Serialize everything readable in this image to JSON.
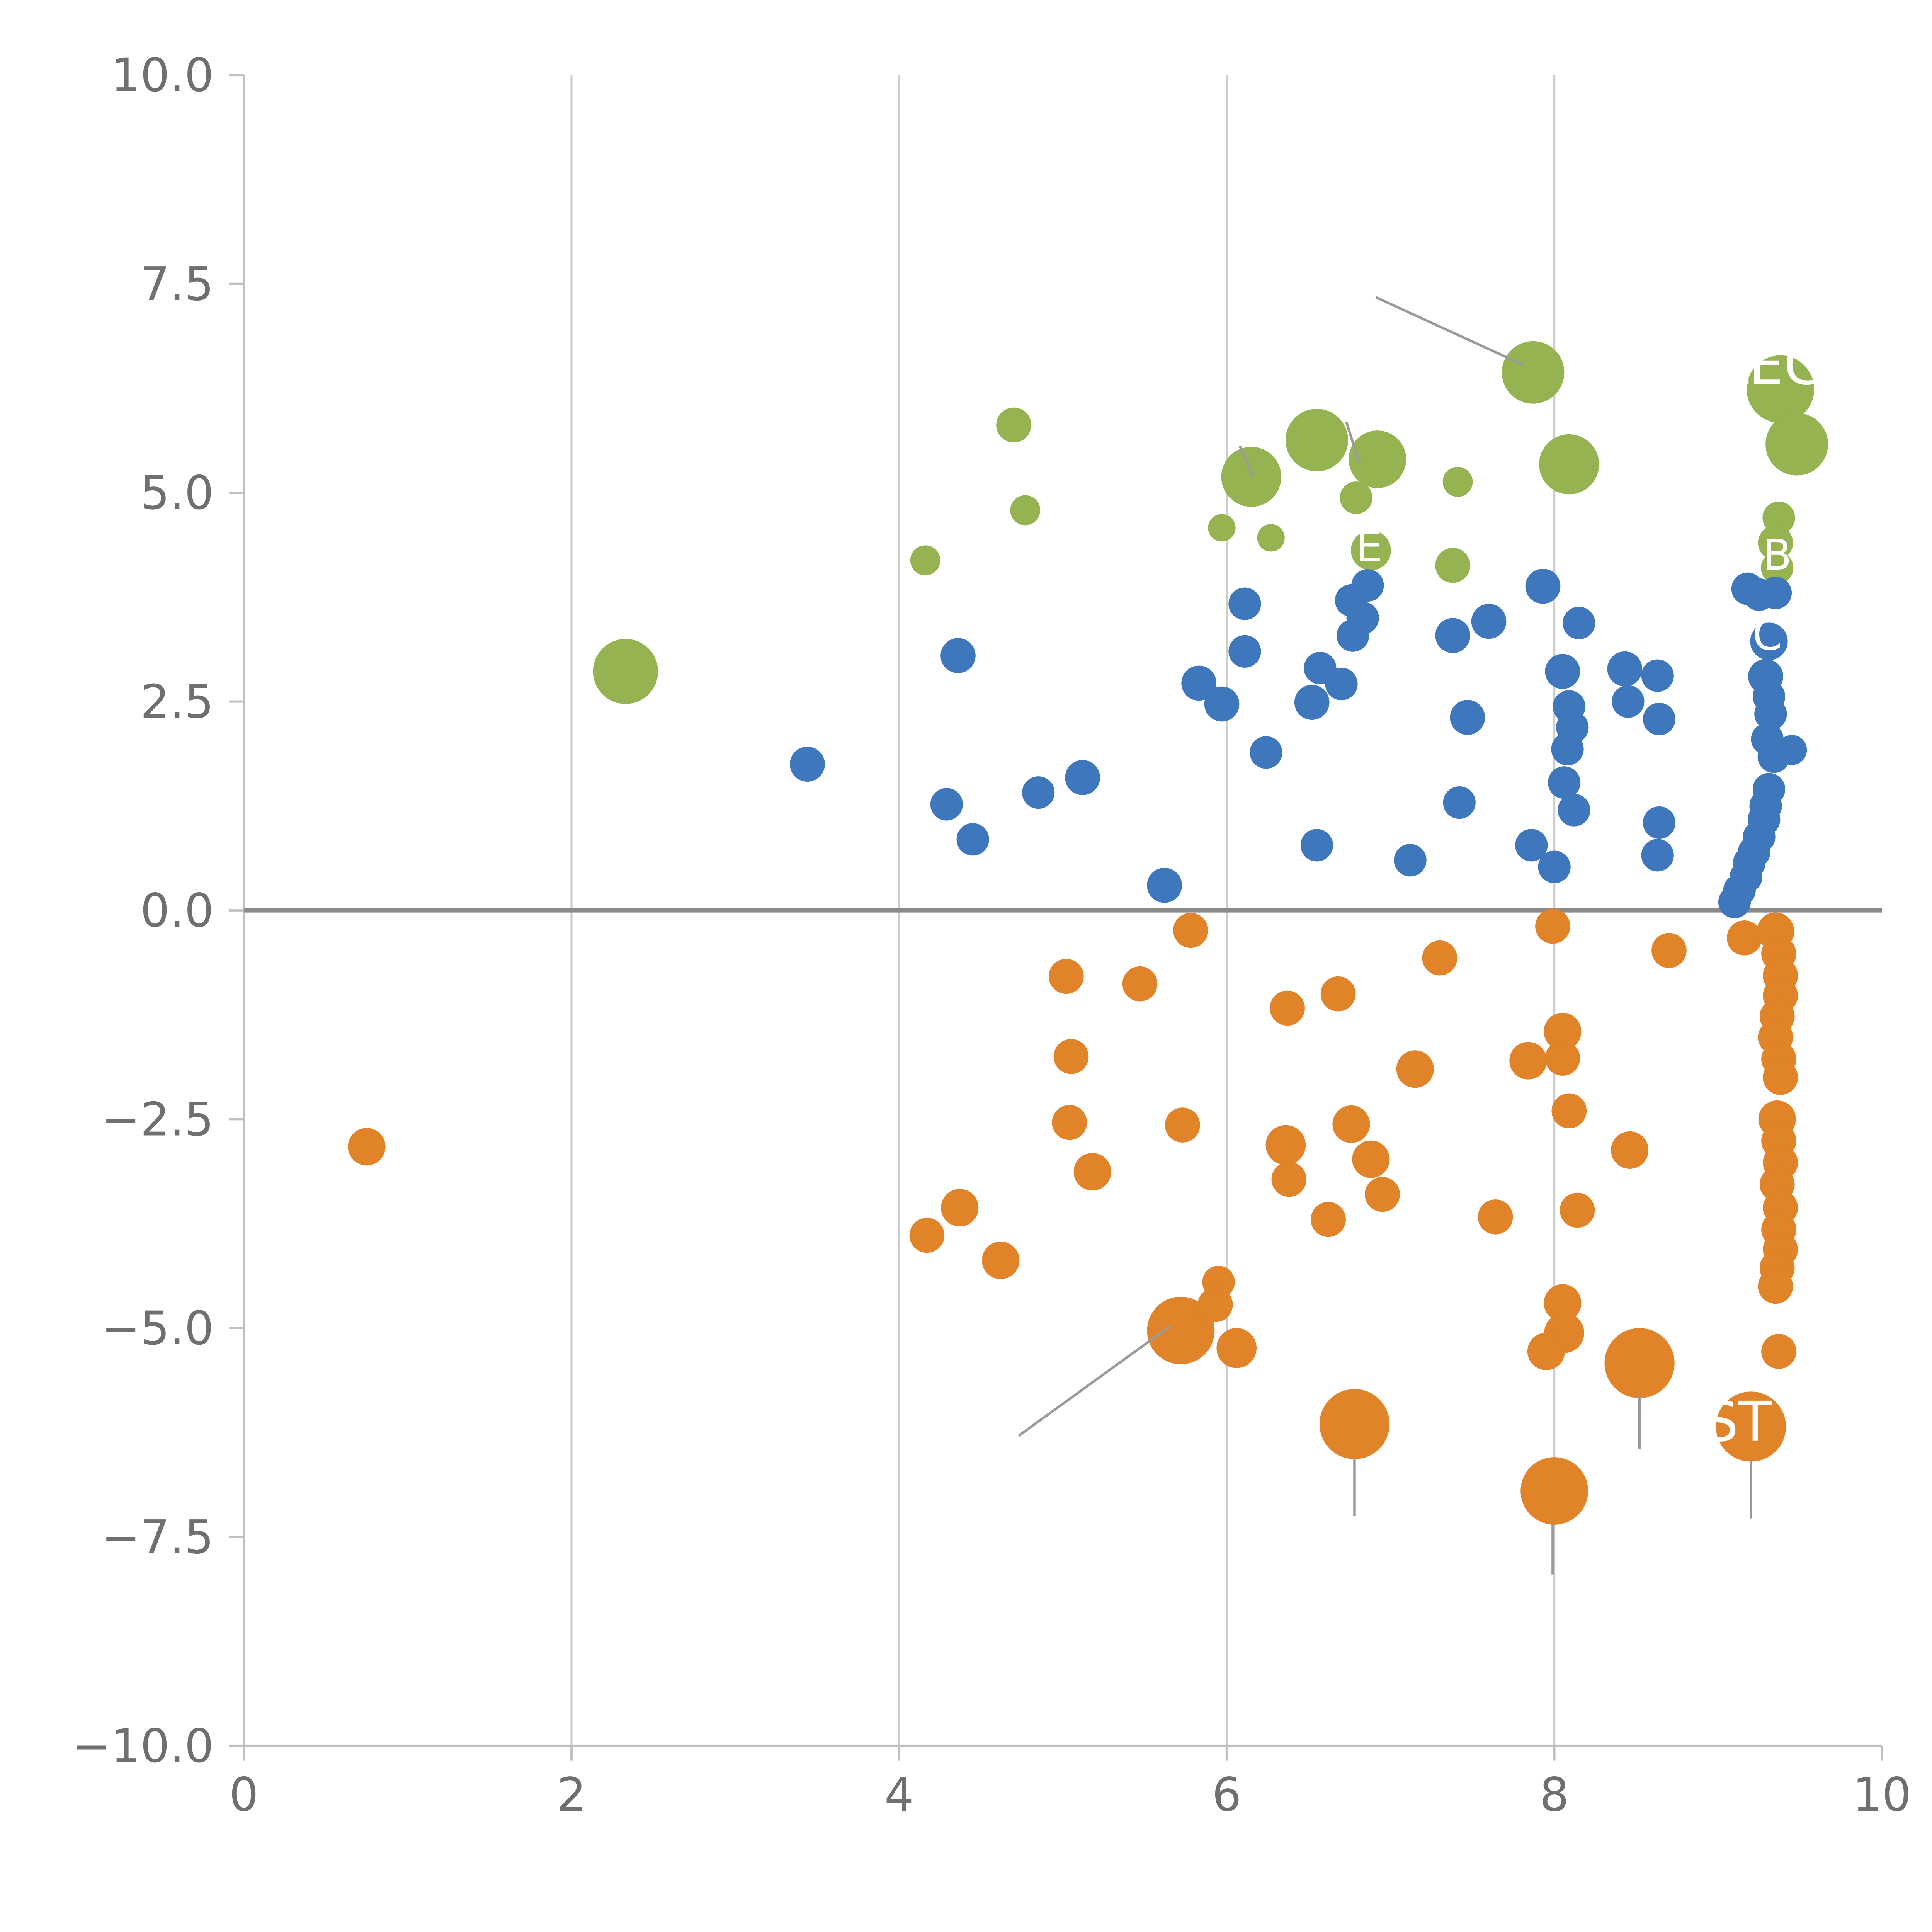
{
  "page": {
    "background": "#ffffff"
  },
  "chart_data": {
    "type": "scatter",
    "title": "",
    "subtitle": "",
    "xlabel": "",
    "ylabel": "",
    "xlim": [
      0,
      10
    ],
    "ylim": [
      -10,
      10
    ],
    "grid": "vertical-only",
    "legend_position": "none",
    "grid_x": [
      2,
      4,
      6,
      8
    ],
    "zero_line_y": 0,
    "x_ticks": [
      {
        "v": 0,
        "label": "0"
      },
      {
        "v": 2,
        "label": "2"
      },
      {
        "v": 4,
        "label": "4"
      },
      {
        "v": 6,
        "label": "6"
      },
      {
        "v": 8,
        "label": "8"
      },
      {
        "v": 10,
        "label": "10"
      }
    ],
    "y_ticks": [
      {
        "v": 10,
        "label": "10.0"
      },
      {
        "v": 7.5,
        "label": "7.5"
      },
      {
        "v": 5,
        "label": "5.0"
      },
      {
        "v": 2.5,
        "label": "2.5"
      },
      {
        "v": 0,
        "label": "0.0"
      },
      {
        "v": -2.5,
        "label": "−2.5"
      },
      {
        "v": -5,
        "label": "−5.0"
      },
      {
        "v": -7.5,
        "label": "−7.5"
      },
      {
        "v": -10,
        "label": "−10.0"
      }
    ],
    "colors": {
      "grid": "#cdcdcd",
      "spine": "#bfbfbf",
      "zero_line": "#8a8a8a",
      "tick_label": "#6f6f6f",
      "leader": "#9a9a9a",
      "label_text": "#ffffff"
    },
    "series": [
      {
        "name": "green",
        "color": "#95b350",
        "points": [
          [
            2.33,
            2.86,
            26
          ],
          [
            4.16,
            4.19,
            12
          ],
          [
            4.7,
            5.81,
            14
          ],
          [
            4.77,
            4.79,
            12
          ],
          [
            5.97,
            4.58,
            11
          ],
          [
            6.15,
            5.19,
            24
          ],
          [
            6.27,
            4.46,
            11
          ],
          [
            6.55,
            5.63,
            25
          ],
          [
            6.79,
            4.94,
            13
          ],
          [
            6.92,
            5.4,
            23
          ],
          [
            6.88,
            4.31,
            16
          ],
          [
            7.41,
            5.13,
            12
          ],
          [
            7.38,
            4.13,
            14
          ],
          [
            7.87,
            6.44,
            25
          ],
          [
            8.09,
            5.34,
            24
          ],
          [
            9.38,
            6.24,
            27
          ],
          [
            9.48,
            5.58,
            25
          ],
          [
            9.37,
            4.7,
            13
          ],
          [
            9.35,
            4.4,
            14
          ],
          [
            9.36,
            4.1,
            13
          ]
        ]
      },
      {
        "name": "blue",
        "color": "#3e77bb",
        "points": [
          [
            3.44,
            1.75,
            14
          ],
          [
            4.29,
            1.27,
            13
          ],
          [
            4.36,
            3.05,
            14
          ],
          [
            4.45,
            0.85,
            13
          ],
          [
            4.85,
            1.41,
            13
          ],
          [
            5.12,
            1.59,
            14
          ],
          [
            5.62,
            0.3,
            14
          ],
          [
            5.83,
            2.72,
            14
          ],
          [
            5.97,
            2.47,
            14
          ],
          [
            6.11,
            3.67,
            13
          ],
          [
            6.11,
            3.1,
            13
          ],
          [
            6.24,
            1.89,
            13
          ],
          [
            6.52,
            2.49,
            14
          ],
          [
            6.55,
            0.78,
            13
          ],
          [
            6.57,
            2.9,
            13
          ],
          [
            6.7,
            2.71,
            13
          ],
          [
            6.76,
            3.71,
            13
          ],
          [
            6.77,
            3.29,
            13
          ],
          [
            6.83,
            3.5,
            13
          ],
          [
            6.86,
            3.89,
            13
          ],
          [
            7.12,
            0.6,
            13
          ],
          [
            7.38,
            3.29,
            14
          ],
          [
            7.42,
            1.29,
            13
          ],
          [
            7.47,
            2.31,
            14
          ],
          [
            7.6,
            3.46,
            14
          ],
          [
            7.86,
            0.78,
            13
          ],
          [
            7.93,
            3.88,
            14
          ],
          [
            8.0,
            0.52,
            13
          ],
          [
            8.05,
            2.86,
            14
          ],
          [
            8.06,
            1.53,
            13
          ],
          [
            8.08,
            1.93,
            13
          ],
          [
            8.09,
            2.44,
            13
          ],
          [
            8.11,
            2.19,
            13
          ],
          [
            8.12,
            1.2,
            13
          ],
          [
            8.15,
            3.44,
            13
          ],
          [
            8.43,
            2.89,
            14
          ],
          [
            8.45,
            2.5,
            13
          ],
          [
            8.63,
            2.81,
            13
          ],
          [
            8.63,
            0.66,
            13
          ],
          [
            8.64,
            1.05,
            13
          ],
          [
            8.64,
            2.29,
            13
          ],
          [
            9.18,
            3.85,
            13
          ],
          [
            9.25,
            3.78,
            13
          ],
          [
            9.35,
            3.8,
            13
          ],
          [
            9.31,
            3.22,
            15
          ],
          [
            9.29,
            2.8,
            14
          ],
          [
            9.31,
            2.56,
            13
          ],
          [
            9.32,
            2.35,
            13
          ],
          [
            9.3,
            2.05,
            13
          ],
          [
            9.34,
            1.84,
            13
          ],
          [
            9.45,
            1.92,
            12
          ],
          [
            9.31,
            1.45,
            13
          ],
          [
            9.29,
            1.25,
            13
          ],
          [
            9.28,
            1.09,
            13
          ],
          [
            9.25,
            0.88,
            13
          ],
          [
            9.22,
            0.7,
            13
          ],
          [
            9.19,
            0.57,
            13
          ],
          [
            9.17,
            0.4,
            13
          ],
          [
            9.13,
            0.24,
            13
          ],
          [
            9.1,
            0.1,
            13
          ]
        ]
      },
      {
        "name": "orange",
        "color": "#e08329",
        "points": [
          [
            0.75,
            -2.83,
            15
          ],
          [
            4.17,
            -3.89,
            14
          ],
          [
            4.37,
            -3.56,
            15
          ],
          [
            4.62,
            -4.19,
            15
          ],
          [
            5.02,
            -0.79,
            14
          ],
          [
            5.05,
            -1.75,
            14
          ],
          [
            5.04,
            -2.54,
            14
          ],
          [
            5.18,
            -3.13,
            15
          ],
          [
            5.47,
            -0.88,
            14
          ],
          [
            5.73,
            -2.57,
            14
          ],
          [
            5.78,
            -0.24,
            14
          ],
          [
            5.72,
            -5.03,
            27
          ],
          [
            5.95,
            -4.45,
            13
          ],
          [
            5.93,
            -4.72,
            14
          ],
          [
            6.06,
            -5.24,
            16
          ],
          [
            6.37,
            -1.17,
            14
          ],
          [
            6.36,
            -2.81,
            16
          ],
          [
            6.38,
            -3.22,
            14
          ],
          [
            6.62,
            -3.7,
            14
          ],
          [
            6.68,
            -1.0,
            14
          ],
          [
            6.76,
            -2.56,
            15
          ],
          [
            6.78,
            -6.15,
            28
          ],
          [
            6.88,
            -2.98,
            15
          ],
          [
            6.95,
            -3.4,
            14
          ],
          [
            7.15,
            -1.9,
            15
          ],
          [
            7.3,
            -0.57,
            14
          ],
          [
            7.64,
            -3.67,
            14
          ],
          [
            7.84,
            -1.8,
            15
          ],
          [
            7.99,
            -0.19,
            14
          ],
          [
            8.05,
            -1.45,
            15
          ],
          [
            8.05,
            -1.77,
            14
          ],
          [
            8.09,
            -2.4,
            14
          ],
          [
            8.05,
            -4.7,
            15
          ],
          [
            8.06,
            -5.06,
            16
          ],
          [
            7.95,
            -5.28,
            15
          ],
          [
            8.0,
            -6.95,
            27
          ],
          [
            8.14,
            -3.59,
            14
          ],
          [
            8.46,
            -2.87,
            15
          ],
          [
            8.52,
            -5.42,
            28
          ],
          [
            8.7,
            -0.48,
            14
          ],
          [
            9.16,
            -0.33,
            14
          ],
          [
            9.2,
            -6.18,
            28
          ],
          [
            9.37,
            -5.28,
            14
          ],
          [
            9.35,
            -0.25,
            15
          ],
          [
            9.37,
            -0.52,
            14
          ],
          [
            9.38,
            -0.78,
            14
          ],
          [
            9.38,
            -1.02,
            14
          ],
          [
            9.36,
            -1.27,
            14
          ],
          [
            9.35,
            -1.52,
            14
          ],
          [
            9.37,
            -1.78,
            14
          ],
          [
            9.38,
            -2.0,
            14
          ],
          [
            9.36,
            -2.5,
            15
          ],
          [
            9.37,
            -2.76,
            14
          ],
          [
            9.38,
            -3.02,
            14
          ],
          [
            9.36,
            -3.28,
            14
          ],
          [
            9.38,
            -3.56,
            14
          ],
          [
            9.37,
            -3.82,
            14
          ],
          [
            9.38,
            -4.06,
            14
          ],
          [
            9.36,
            -4.28,
            14
          ],
          [
            9.35,
            -4.5,
            14
          ]
        ]
      }
    ],
    "leader_lines": [
      {
        "x1": 6.91,
        "y1": 7.34,
        "x2": 7.81,
        "y2": 6.53
      },
      {
        "x1": 4.73,
        "y1": -6.29,
        "x2": 5.66,
        "y2": -4.97
      },
      {
        "x1": 6.08,
        "y1": 5.56,
        "x2": 6.16,
        "y2": 5.2
      },
      {
        "x1": 6.73,
        "y1": 5.85,
        "x2": 6.81,
        "y2": 5.35
      },
      {
        "x1": 6.78,
        "y1": -6.55,
        "x2": 6.78,
        "y2": -7.25
      },
      {
        "x1": 7.99,
        "y1": -7.35,
        "x2": 7.99,
        "y2": -7.95
      },
      {
        "x1": 8.52,
        "y1": -5.82,
        "x2": 8.52,
        "y2": -6.45
      },
      {
        "x1": 9.2,
        "y1": -6.58,
        "x2": 9.2,
        "y2": -7.28
      }
    ],
    "annotations": [
      {
        "text": "LEG",
        "x": 9.33,
        "y": 6.3,
        "size": 44,
        "color": "#ffffff"
      },
      {
        "text": "ST",
        "x": 9.12,
        "y": -6.35,
        "size": 44,
        "color": "#ffffff"
      },
      {
        "text": "E",
        "x": 6.87,
        "y": 4.18,
        "size": 34,
        "color": "#ffffff"
      },
      {
        "text": "B",
        "x": 9.36,
        "y": 4.08,
        "size": 34,
        "color": "#ffffff"
      },
      {
        "text": "C",
        "x": 9.3,
        "y": 3.12,
        "size": 34,
        "color": "#ffffff"
      }
    ]
  }
}
